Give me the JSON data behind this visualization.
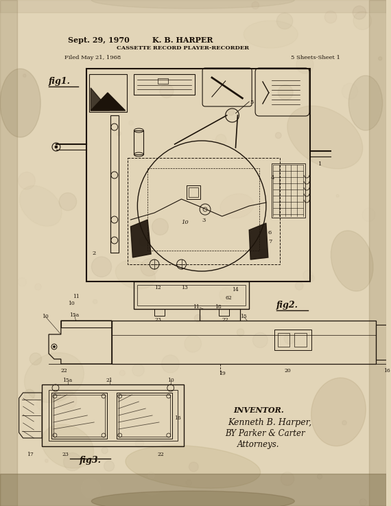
{
  "bg_color": "#e2d5b8",
  "ink": "#1c130a",
  "date": "Sept. 29, 1970",
  "inventor_name": "K. B. HARPER",
  "patent_title": "CASSETTE RECORD PLAYER-RECORDER",
  "filed": "Filed May 21, 1968",
  "sheets": "5 Sheets-Sheet 1",
  "fig1_label": "fig1.",
  "fig2_label": "fig2.",
  "fig3_label": "fig3.",
  "inv_line1": "INVENTOR.",
  "inv_line2": "Kenneth B. Harper,",
  "inv_line3": "BY Parker & Carter",
  "inv_line4": "Attorneys.",
  "stain_colors": [
    "#b8a882",
    "#c9bc98",
    "#a89268",
    "#d4c8a4",
    "#8c7a58"
  ],
  "corner_color": "#7a6840",
  "bottom_color": "#6a5a38"
}
